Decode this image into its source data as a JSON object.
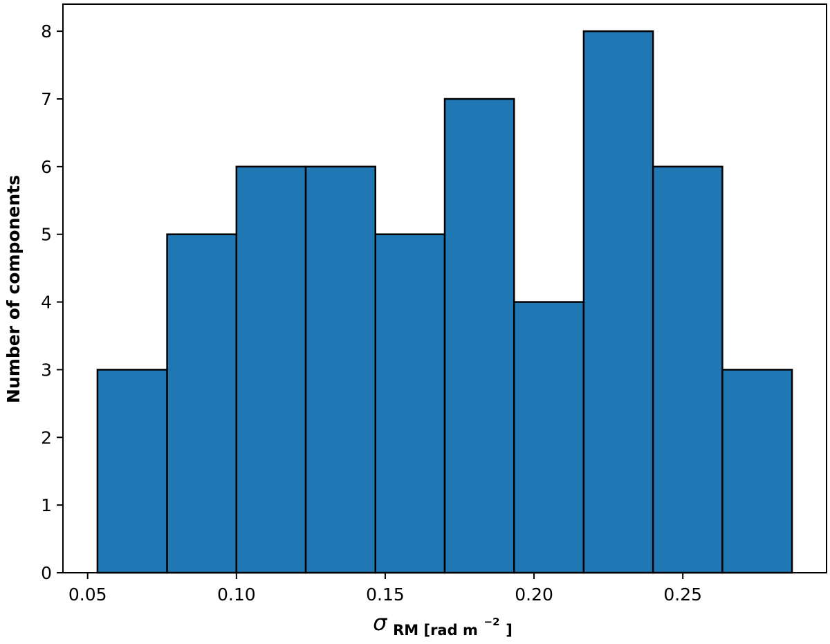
{
  "chart_data": {
    "type": "bar",
    "subtype": "histogram",
    "bin_edges": [
      0.0533,
      0.0767,
      0.1,
      0.1233,
      0.1467,
      0.17,
      0.1933,
      0.2167,
      0.24,
      0.2633,
      0.2867
    ],
    "values": [
      3,
      5,
      6,
      6,
      5,
      7,
      4,
      8,
      6,
      3
    ],
    "xlim": [
      0.0417,
      0.2983
    ],
    "ylim": [
      0,
      8.4
    ],
    "xticks": [
      0.05,
      0.1,
      0.15,
      0.2,
      0.25
    ],
    "xtick_labels": [
      "0.05",
      "0.10",
      "0.15",
      "0.20",
      "0.25"
    ],
    "yticks": [
      0,
      1,
      2,
      3,
      4,
      5,
      6,
      7,
      8
    ],
    "ytick_labels": [
      "0",
      "1",
      "2",
      "3",
      "4",
      "5",
      "6",
      "7",
      "8"
    ],
    "xlabel": {
      "symbol": "σ",
      "subscript": "RM [rad m",
      "superscript": "−2",
      "close": "]"
    },
    "ylabel": "Number of components",
    "title": "",
    "legend": "none",
    "grid": false,
    "bar_color": "#1f77b4",
    "edge_color": "#000000"
  }
}
